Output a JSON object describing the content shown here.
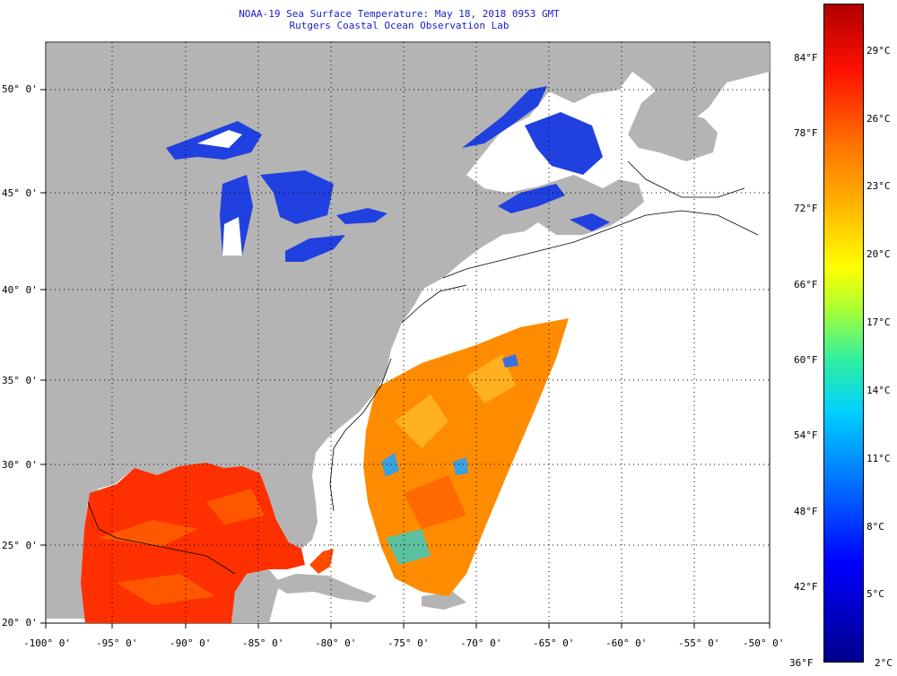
{
  "title": {
    "line1": "NOAA-19 Sea Surface Temperature:  May 18, 2018 0953 GMT",
    "line2": "Rutgers Coastal Ocean Observation Lab"
  },
  "map": {
    "lon_range": [
      -100,
      -50
    ],
    "lat_range": [
      20,
      52.5
    ],
    "longitude_labels": [
      "-100° 0'",
      "-95° 0'",
      "-90° 0'",
      "-85° 0'",
      "-80° 0'",
      "-75° 0'",
      "-70° 0'",
      "-65° 0'",
      "-60° 0'",
      "-55° 0'",
      "-50° 0'"
    ],
    "latitude_labels": [
      "50° 0'",
      "45° 0'",
      "40° 0'",
      "35° 0'",
      "30° 0'",
      "25° 0'",
      "20° 0'"
    ],
    "colors": {
      "land": "#b4b4b4",
      "ocean_no_data": "#ffffff",
      "lakes": "#2040e0",
      "gulf_sst": "#ff3000",
      "atlantic_sst": "#ff8800",
      "title_text": "#1a22c8"
    }
  },
  "colorbar": {
    "fahrenheit_labels": [
      "84°F",
      "78°F",
      "72°F",
      "66°F",
      "60°F",
      "54°F",
      "48°F",
      "42°F",
      "36°F"
    ],
    "celsius_labels": [
      "29°C",
      "26°C",
      "23°C",
      "20°C",
      "17°C",
      "14°C",
      "11°C",
      "8°C",
      "5°C",
      "2°C"
    ]
  }
}
